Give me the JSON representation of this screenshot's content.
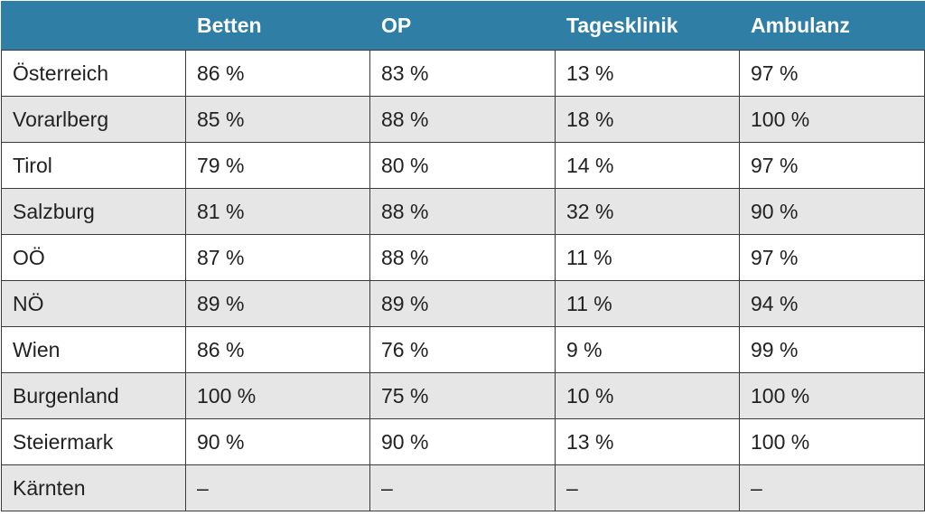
{
  "table": {
    "headers": [
      "",
      "Betten",
      "OP",
      "Tagesklinik",
      "Ambulanz"
    ],
    "rows": [
      [
        "Österreich",
        "86 %",
        "83 %",
        "13 %",
        "97 %"
      ],
      [
        "Vorarlberg",
        "85 %",
        "88 %",
        "18 %",
        "100 %"
      ],
      [
        "Tirol",
        "79 %",
        "80 %",
        "14 %",
        "97 %"
      ],
      [
        "Salzburg",
        "81 %",
        "88 %",
        "32 %",
        "90 %"
      ],
      [
        "OÖ",
        "87 %",
        "88 %",
        "11 %",
        "97 %"
      ],
      [
        "NÖ",
        "89 %",
        "89 %",
        "11 %",
        "94 %"
      ],
      [
        "Wien",
        "86 %",
        "76 %",
        "9 %",
        "99 %"
      ],
      [
        "Burgenland",
        "100 %",
        "75 %",
        "10 %",
        "100 %"
      ],
      [
        "Steiermark",
        "90 %",
        "90 %",
        "13 %",
        "100 %"
      ],
      [
        "Kärnten",
        "–",
        "–",
        "–",
        "–"
      ]
    ]
  },
  "colors": {
    "header_bg": "#2e7ea6",
    "header_text": "#ffffff",
    "row_alt_bg": "#e6e6e6",
    "border": "#3a3a3a"
  }
}
